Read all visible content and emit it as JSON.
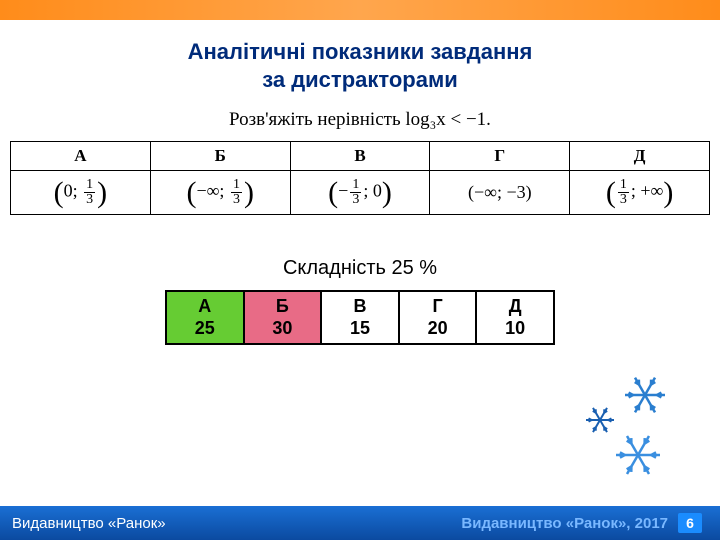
{
  "title_line1": "Аналітичні показники завдання",
  "title_line2": "за дистракторами",
  "problem_text": "Розв'яжіть нерівність  log₃x < −1.",
  "answers": {
    "headers": [
      "А",
      "Б",
      "В",
      "Г",
      "Д"
    ],
    "options": [
      {
        "left": "(",
        "a": "0",
        "sep": ";",
        "b_num": "1",
        "b_den": "3",
        "right": ")"
      },
      {
        "left": "(",
        "a": "−∞",
        "sep": ";",
        "b_num": "1",
        "b_den": "3",
        "right": ")"
      },
      {
        "left": "(",
        "a_neg": "−",
        "a_num": "1",
        "a_den": "3",
        "sep": ";",
        "b": "0",
        "right": ")"
      },
      {
        "plain": "(−∞; −3)"
      },
      {
        "left": "(",
        "a_num": "1",
        "a_den": "3",
        "sep": ";",
        "b": "+∞",
        "right": ")"
      }
    ],
    "header_bg": "#ffffff",
    "cell_bg": "#ffffff"
  },
  "difficulty_label": "Складність 25 %",
  "distractors": {
    "cells": [
      {
        "label": "А",
        "value": "25",
        "bg": "#66cc33"
      },
      {
        "label": "Б",
        "value": "30",
        "bg": "#e86b86"
      },
      {
        "label": "В",
        "value": "15",
        "bg": "#ffffff"
      },
      {
        "label": "Г",
        "value": "20",
        "bg": "#ffffff"
      },
      {
        "label": "Д",
        "value": "10",
        "bg": "#ffffff"
      }
    ]
  },
  "snowflake_colors": [
    "#2a7ecf",
    "#1a5fb0",
    "#3a8fe0"
  ],
  "footer": {
    "left": "Видавництво «Ранок»",
    "right_pub": "Видавництво «Ранок», 2017",
    "page": "6"
  },
  "colors": {
    "top_band": "#ff8c1a",
    "title": "#002b7a",
    "footer_grad_top": "#1a6fd4",
    "footer_grad_bot": "#0b4aa0",
    "page_num_bg": "#1a8cff"
  }
}
